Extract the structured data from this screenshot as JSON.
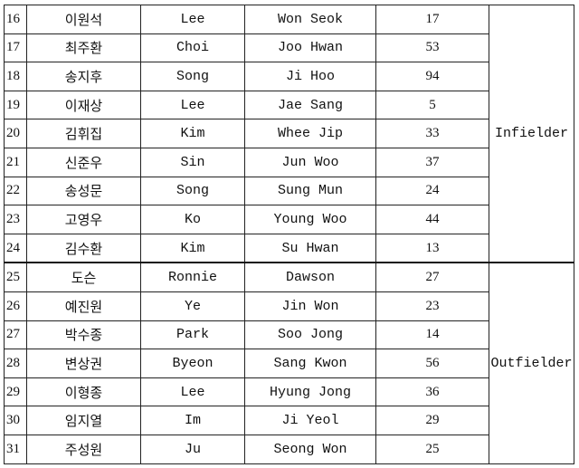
{
  "groups": [
    {
      "position": "Infielder",
      "rows": [
        {
          "no": "16",
          "korean": "이원석",
          "surname": "Lee",
          "given": "Won Seok",
          "number": "17"
        },
        {
          "no": "17",
          "korean": "최주환",
          "surname": "Choi",
          "given": "Joo Hwan",
          "number": "53"
        },
        {
          "no": "18",
          "korean": "송지후",
          "surname": "Song",
          "given": "Ji Hoo",
          "number": "94"
        },
        {
          "no": "19",
          "korean": "이재상",
          "surname": "Lee",
          "given": "Jae Sang",
          "number": "5"
        },
        {
          "no": "20",
          "korean": "김휘집",
          "surname": "Kim",
          "given": "Whee Jip",
          "number": "33"
        },
        {
          "no": "21",
          "korean": "신준우",
          "surname": "Sin",
          "given": "Jun Woo",
          "number": "37"
        },
        {
          "no": "22",
          "korean": "송성문",
          "surname": "Song",
          "given": "Sung Mun",
          "number": "24"
        },
        {
          "no": "23",
          "korean": "고영우",
          "surname": "Ko",
          "given": "Young Woo",
          "number": "44"
        },
        {
          "no": "24",
          "korean": "김수환",
          "surname": "Kim",
          "given": "Su Hwan",
          "number": "13"
        }
      ]
    },
    {
      "position": "Outfielder",
      "rows": [
        {
          "no": "25",
          "korean": "도슨",
          "surname": "Ronnie",
          "given": "Dawson",
          "number": "27"
        },
        {
          "no": "26",
          "korean": "예진원",
          "surname": "Ye",
          "given": "Jin Won",
          "number": "23"
        },
        {
          "no": "27",
          "korean": "박수종",
          "surname": "Park",
          "given": "Soo Jong",
          "number": "14"
        },
        {
          "no": "28",
          "korean": "변상권",
          "surname": "Byeon",
          "given": "Sang Kwon",
          "number": "56"
        },
        {
          "no": "29",
          "korean": "이형종",
          "surname": "Lee",
          "given": "Hyung Jong",
          "number": "36"
        },
        {
          "no": "30",
          "korean": "임지열",
          "surname": "Im",
          "given": "Ji Yeol",
          "number": "29"
        },
        {
          "no": "31",
          "korean": "주성원",
          "surname": "Ju",
          "given": "Seong Won",
          "number": "25"
        }
      ]
    }
  ]
}
